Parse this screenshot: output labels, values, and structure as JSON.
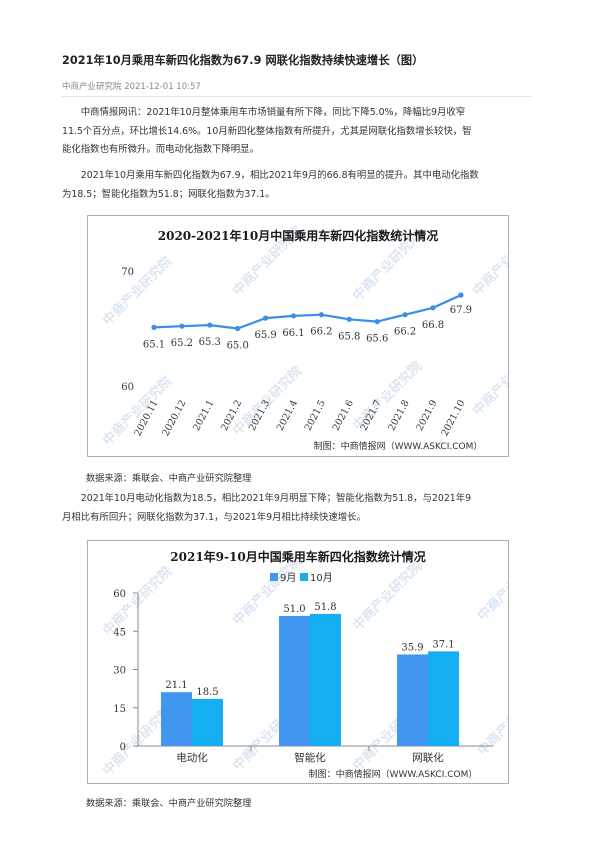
{
  "article": {
    "title": "2021年10月乘用车新四化指数为67.9 网联化指数持续快速增长（图）",
    "source_line": "中商产业研究院 2021-12-01 10:57",
    "paragraph1_line1": "中商情报网讯：2021年10月整体乘用车市场销量有所下降，同比下降5.0%，降幅比9月收窄",
    "paragraph1_line2": "11.5个百分点，环比增长14.6%。10月新四化整体指数有所提升，尤其是网联化指数增长较快，智",
    "paragraph1_line3": "能化指数也有所微升。而电动化指数下降明显。",
    "paragraph2_line1": "2021年10月乘用车新四化指数为67.9，相比2021年9月的66.8有明显的提升。其中电动化指数",
    "paragraph2_line2": "为18.5；智能化指数为51.8；网联化指数为37.1。",
    "data_source_1": "数据来源：乘联会、中商产业研究院整理",
    "paragraph3_line1": "2021年10月电动化指数为18.5，相比2021年9月明显下降；智能化指数为51.8，与2021年9",
    "paragraph3_line2": "月相比有所回升；网联化指数为37.1，与2021年9月相比持续快速增长。",
    "data_source_2": "数据来源：乘联会、中商产业研究院整理"
  },
  "watermark": {
    "text": "中商产业研究院",
    "credit": "制图：中商情报网（WWW.ASKCI.COM）"
  },
  "chart_data": [
    {
      "type": "line",
      "title": "2020-2021年10月中国乘用车新四化指数统计情况",
      "xlabel": "",
      "ylabel": "",
      "categories": [
        "2020.11",
        "2020.12",
        "2021.1",
        "2021.2",
        "2021.3",
        "2021.4",
        "2021.5",
        "2021.6",
        "2021.7",
        "2021.8",
        "2021.9",
        "2021.10"
      ],
      "values": [
        65.1,
        65.2,
        65.3,
        65.0,
        65.9,
        66.1,
        66.2,
        65.8,
        65.6,
        66.2,
        66.8,
        67.9
      ],
      "value_labels": [
        "65.1",
        "65.2",
        "65.3",
        "65.0",
        "65.9",
        "66.1",
        "66.2",
        "65.8",
        "65.6",
        "66.2",
        "66.8",
        "67.9"
      ],
      "y_ticks": [
        "60",
        "70"
      ],
      "ylim": [
        60,
        70
      ],
      "grid": false,
      "color": "#3a8ee6"
    },
    {
      "type": "bar",
      "title": "2021年9-10月中国乘用车新四化指数统计情况",
      "xlabel": "",
      "ylabel": "",
      "categories": [
        "电动化",
        "智能化",
        "网联化"
      ],
      "series": [
        {
          "name": "9月",
          "values": [
            21.1,
            51.0,
            35.9
          ],
          "labels": [
            "21.1",
            "51.0",
            "35.9"
          ],
          "color": "#4196f0"
        },
        {
          "name": "10月",
          "values": [
            18.5,
            51.8,
            37.1
          ],
          "labels": [
            "18.5",
            "51.8",
            "37.1"
          ],
          "color": "#16aef2"
        }
      ],
      "y_ticks": [
        "0",
        "15",
        "30",
        "45",
        "60"
      ],
      "ylim": [
        0,
        60
      ],
      "grid": false,
      "legend": "top-center"
    }
  ]
}
